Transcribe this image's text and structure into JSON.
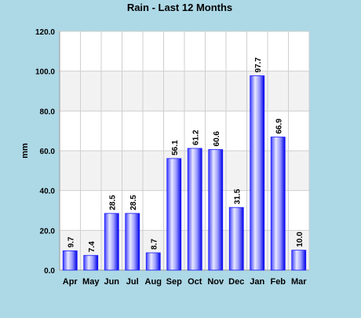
{
  "chart_data": {
    "type": "bar",
    "title": "Rain - Last 12 Months",
    "xlabel": "",
    "ylabel": "mm",
    "categories": [
      "Apr",
      "May",
      "Jun",
      "Jul",
      "Aug",
      "Sep",
      "Oct",
      "Nov",
      "Dec",
      "Jan",
      "Feb",
      "Mar"
    ],
    "values": [
      9.7,
      7.4,
      28.5,
      28.5,
      8.7,
      56.1,
      61.2,
      60.6,
      31.5,
      97.7,
      66.9,
      10.0
    ],
    "data_labels": [
      "9.7",
      "7.4",
      "28.5",
      "28.5",
      "8.7",
      "56.1",
      "61.2",
      "60.6",
      "31.5",
      "97.7",
      "66.9",
      "10.0"
    ],
    "ylim": [
      0,
      120
    ],
    "yticks": [
      0,
      20,
      40,
      60,
      80,
      100,
      120
    ],
    "ytick_labels": [
      "0.0",
      "20.0",
      "40.0",
      "60.0",
      "80.0",
      "100.0",
      "120.0"
    ],
    "grid": true,
    "legend": "none",
    "colors": {
      "background": "#add8e6",
      "plot_band_light": "#ffffff",
      "plot_band_dark": "#f2f2f2",
      "bar_edge": "#1a1aff",
      "bar_highlight": "#e8e8ff",
      "text": "#000000"
    }
  }
}
